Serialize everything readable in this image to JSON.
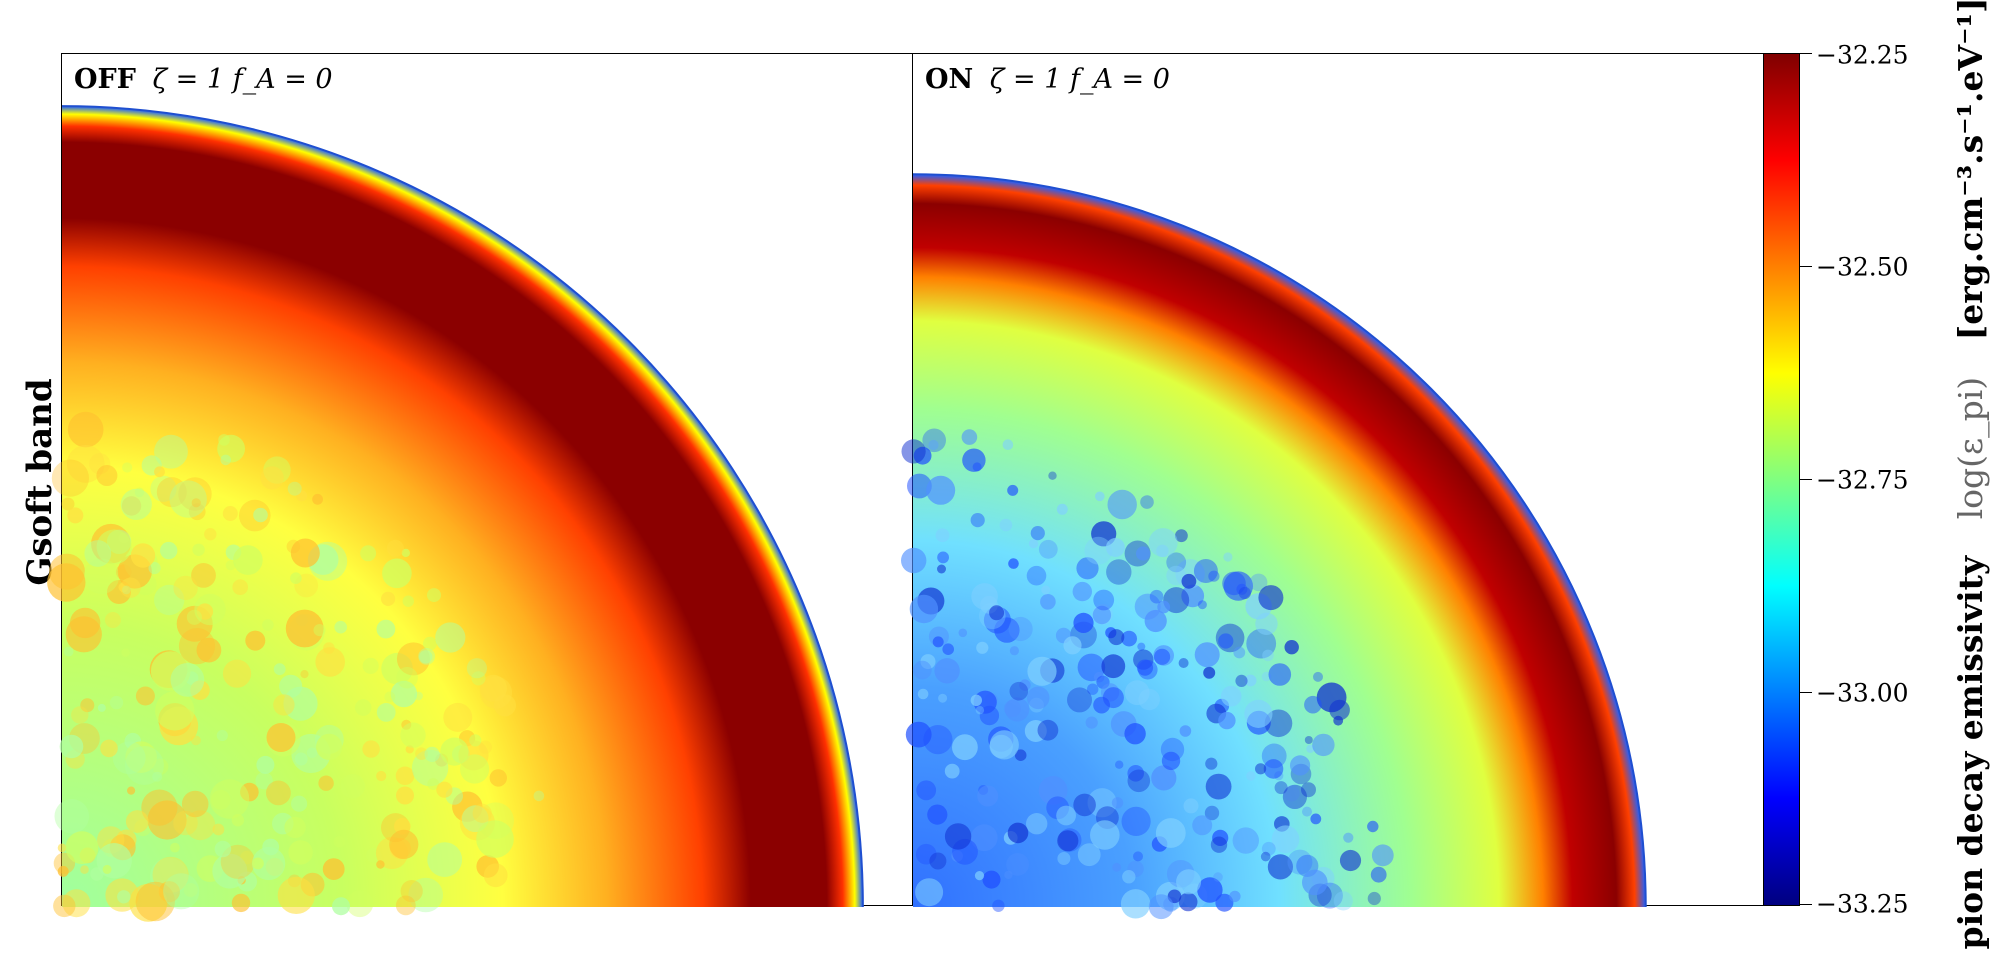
{
  "figure": {
    "row_label": "Gsoft band"
  },
  "panels": [
    {
      "mode": "OFF",
      "params": "ζ = 1  f_A = 0",
      "shell_radius_frac": 0.94,
      "interior": "warm"
    },
    {
      "mode": "ON",
      "params": "ζ = 1  f_A = 0",
      "shell_radius_frac": 0.86,
      "interior": "cool"
    }
  ],
  "chart_data": {
    "type": "heatmap",
    "colormap": "jet",
    "colorbar": {
      "title_quantity": "pion decay emissivity",
      "title_symbol": "log(ε_pi)",
      "title_units": "[erg.cm⁻³.s⁻¹.eV⁻¹]",
      "range": [
        -33.25,
        -32.25
      ],
      "ticks": [
        -32.25,
        -32.5,
        -32.75,
        -33.0,
        -33.25
      ],
      "tick_labels": [
        "−32.25",
        "−32.50",
        "−32.75",
        "−33.00",
        "−33.25"
      ]
    }
  }
}
